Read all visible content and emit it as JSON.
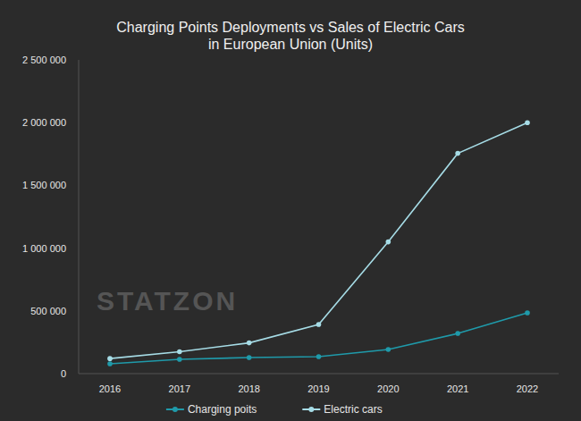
{
  "chart_data": {
    "type": "line",
    "title": "Charging Points Deployments vs Sales of Electric Cars\nin European Union (Units)",
    "categories": [
      "2016",
      "2017",
      "2018",
      "2019",
      "2020",
      "2021",
      "2022"
    ],
    "series": [
      {
        "name": "Charging poits",
        "color": "#1f9aaa",
        "marker": "circle",
        "values": [
          78000,
          114000,
          128000,
          135000,
          192000,
          320000,
          484000
        ]
      },
      {
        "name": "Electric cars",
        "color": "#a6dce6",
        "marker": "circle",
        "values": [
          120000,
          175000,
          245000,
          392000,
          1050000,
          1755000,
          2000000
        ]
      }
    ],
    "ylim": [
      0,
      2500000
    ],
    "yticks": [
      0,
      {
        "value": 500000,
        "label": "500 000"
      },
      {
        "value": 1000000,
        "label": "1 000 000"
      },
      {
        "value": 1500000,
        "label": "1 500 000"
      },
      {
        "value": 2000000,
        "label": "2 000 000"
      },
      {
        "value": 2500000,
        "label": "2 500 000"
      }
    ],
    "grid": false,
    "legend": "bottom",
    "annotations": [
      "STATZON"
    ]
  }
}
